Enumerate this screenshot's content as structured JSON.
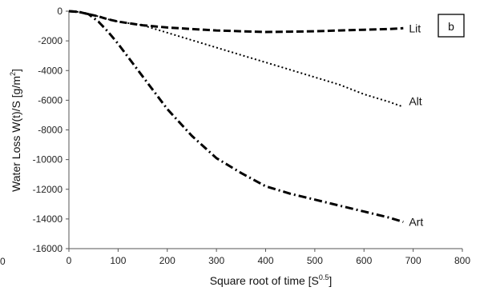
{
  "chart_data": {
    "type": "line",
    "panel_label": "b",
    "xlabel": "Square root of time [S",
    "xlabel_sup": "0.5",
    "xlabel_end": "]",
    "ylabel": "Water Loss W(t)/S [g/m",
    "ylabel_sup": "2",
    "ylabel_end": "]",
    "xlim": [
      0,
      800
    ],
    "ylim": [
      -16000,
      0
    ],
    "x_ticks": [
      0,
      100,
      200,
      300,
      400,
      500,
      600,
      700,
      800
    ],
    "y_ticks": [
      0,
      -2000,
      -4000,
      -6000,
      -8000,
      -10000,
      -12000,
      -14000,
      -16000
    ],
    "clipped_left_tick": "0",
    "grid": false,
    "series": [
      {
        "name": "Lit",
        "style": "dashed",
        "x": [
          0,
          20,
          40,
          60,
          80,
          100,
          120,
          150,
          200,
          250,
          300,
          350,
          400,
          450,
          500,
          550,
          600,
          650,
          680
        ],
        "y": [
          0,
          -50,
          -200,
          -350,
          -550,
          -700,
          -800,
          -950,
          -1100,
          -1200,
          -1300,
          -1350,
          -1400,
          -1380,
          -1350,
          -1300,
          -1250,
          -1200,
          -1150
        ]
      },
      {
        "name": "Alt",
        "style": "dotted",
        "x": [
          0,
          20,
          40,
          60,
          80,
          100,
          120,
          150,
          200,
          250,
          300,
          350,
          400,
          450,
          500,
          550,
          600,
          650,
          680
        ],
        "y": [
          0,
          -50,
          -200,
          -350,
          -550,
          -700,
          -800,
          -950,
          -1450,
          -1950,
          -2450,
          -2950,
          -3450,
          -3950,
          -4450,
          -4950,
          -5600,
          -6100,
          -6450
        ]
      },
      {
        "name": "Art",
        "style": "dashdot",
        "x": [
          0,
          20,
          40,
          60,
          80,
          100,
          150,
          200,
          250,
          300,
          350,
          400,
          450,
          500,
          550,
          600,
          650,
          680
        ],
        "y": [
          0,
          -50,
          -200,
          -700,
          -1400,
          -2200,
          -4400,
          -6600,
          -8400,
          -9900,
          -10900,
          -11800,
          -12300,
          -12700,
          -13100,
          -13500,
          -13900,
          -14200
        ]
      }
    ]
  }
}
